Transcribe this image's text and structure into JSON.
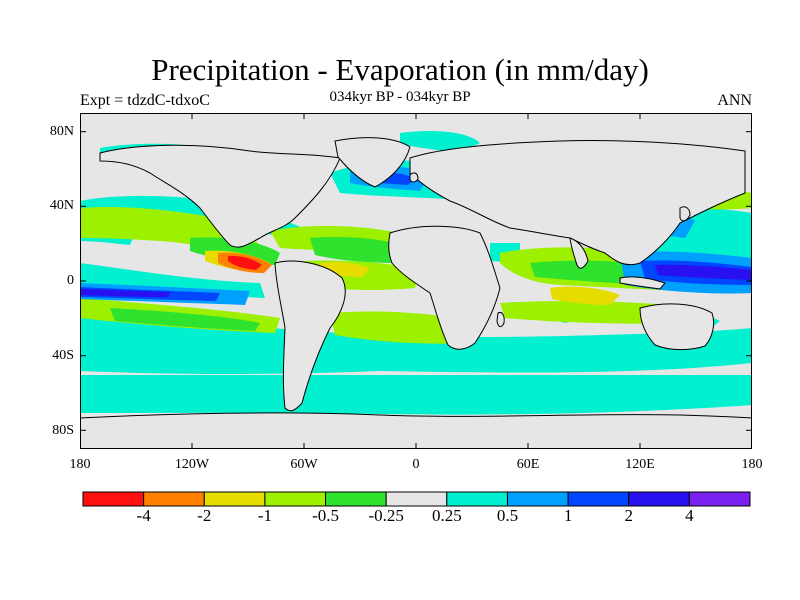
{
  "figure": {
    "title": "Precipitation - Evaporation (in mm/day)",
    "subtitle": "034kyr BP - 034kyr BP",
    "left_label": "Expt = tdzdC-tdxoC",
    "right_label": "ANN"
  },
  "axes": {
    "lat_ticks": [
      "80N",
      "40N",
      "0",
      "40S",
      "80S"
    ],
    "lon_ticks": [
      "180",
      "120W",
      "60W",
      "0",
      "60E",
      "120E",
      "180"
    ]
  },
  "colorbar": {
    "colors": [
      "#ff1010",
      "#ff8000",
      "#e6dc00",
      "#9cf000",
      "#2ee22e",
      "#e6e6e6",
      "#00f0d0",
      "#00a0ff",
      "#0046ff",
      "#2810f0",
      "#7a20f0"
    ],
    "labels": [
      "-4",
      "-2",
      "-1",
      "-0.5",
      "-0.25",
      "0.25",
      "0.5",
      "1",
      "2",
      "4"
    ]
  },
  "map_colors": {
    "background": "#e6e6e6",
    "coast": "#000000"
  }
}
